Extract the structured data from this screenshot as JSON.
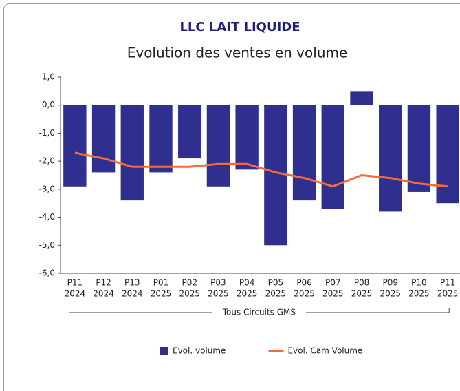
{
  "chart_data": {
    "type": "bar",
    "title": "LLC LAIT LIQUIDE",
    "subtitle": "Evolution des ventes en volume",
    "categories": [
      [
        "P11",
        "2024"
      ],
      [
        "P12",
        "2024"
      ],
      [
        "P13",
        "2024"
      ],
      [
        "P01",
        "2025"
      ],
      [
        "P02",
        "2025"
      ],
      [
        "P03",
        "2025"
      ],
      [
        "P04",
        "2025"
      ],
      [
        "P05",
        "2025"
      ],
      [
        "P06",
        "2025"
      ],
      [
        "P07",
        "2025"
      ],
      [
        "P08",
        "2025"
      ],
      [
        "P09",
        "2025"
      ],
      [
        "P10",
        "2025"
      ],
      [
        "P11",
        "2025"
      ]
    ],
    "group_label": "Tous Circuits GMS",
    "series": [
      {
        "name": "Evol. volume",
        "type": "bar",
        "color": "#2e2f8f",
        "values": [
          -2.9,
          -2.4,
          -3.4,
          -2.4,
          -1.9,
          -2.9,
          -2.3,
          -5.0,
          -3.4,
          -3.7,
          0.5,
          -3.8,
          -3.1,
          -3.5
        ]
      },
      {
        "name": "Evol. Cam Volume",
        "type": "line",
        "color": "#f26b3a",
        "values": [
          -1.7,
          -1.9,
          -2.2,
          -2.2,
          -2.2,
          -2.1,
          -2.1,
          -2.4,
          -2.6,
          -2.9,
          -2.5,
          -2.6,
          -2.8,
          -2.9
        ]
      }
    ],
    "ylim": [
      -6,
      1
    ],
    "yticks": [
      {
        "value": 1,
        "label": "1,0"
      },
      {
        "value": 0,
        "label": "0,0"
      },
      {
        "value": -1,
        "label": "-1,0"
      },
      {
        "value": -2,
        "label": "-2,0"
      },
      {
        "value": -3,
        "label": "-3,0"
      },
      {
        "value": -4,
        "label": "-4,0"
      },
      {
        "value": -5,
        "label": "-5,0"
      },
      {
        "value": -6,
        "label": "-6,0"
      }
    ]
  }
}
